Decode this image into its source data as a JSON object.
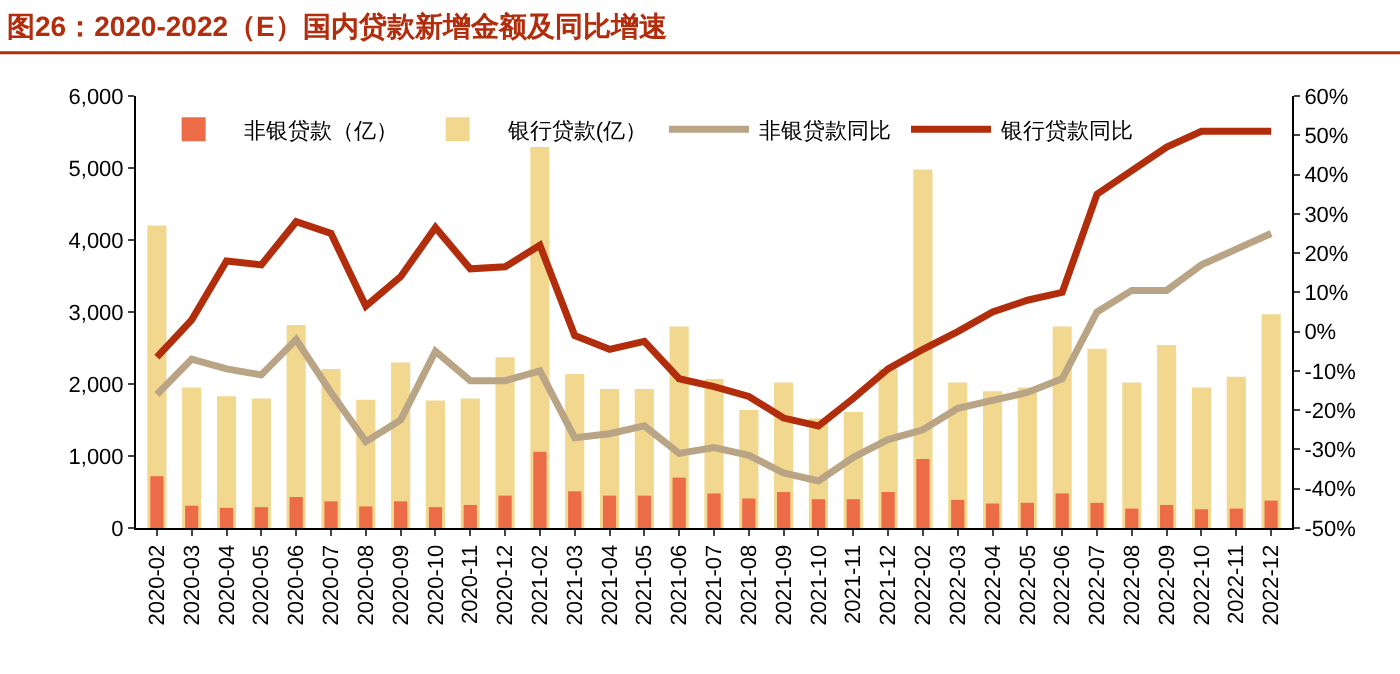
{
  "chart_data": {
    "type": "bar",
    "title": "图26：2020-2022（E）国内贷款新增金额及同比增速",
    "categories": [
      "2020-02",
      "2020-03",
      "2020-04",
      "2020-05",
      "2020-06",
      "2020-07",
      "2020-08",
      "2020-09",
      "2020-10",
      "2020-11",
      "2020-12",
      "2021-02",
      "2021-03",
      "2021-04",
      "2021-05",
      "2021-06",
      "2021-07",
      "2021-08",
      "2021-09",
      "2021-10",
      "2021-11",
      "2021-12",
      "2022-02",
      "2022-03",
      "2022-04",
      "2022-05",
      "2022-06",
      "2022-07",
      "2022-08",
      "2022-09",
      "2022-10",
      "2022-11",
      "2022-12"
    ],
    "series": [
      {
        "name": "非银贷款（亿）",
        "color": "#ec6c48",
        "values": [
          720,
          310,
          280,
          290,
          430,
          370,
          300,
          370,
          290,
          320,
          450,
          1060,
          510,
          450,
          450,
          700,
          480,
          410,
          500,
          400,
          400,
          500,
          960,
          390,
          340,
          350,
          480,
          350,
          270,
          320,
          260,
          270,
          380
        ]
      },
      {
        "name": "银行贷款(亿）",
        "color": "#f2d88f",
        "values": [
          4200,
          1950,
          1830,
          1800,
          2820,
          2210,
          1780,
          2300,
          1770,
          1800,
          2370,
          5290,
          2140,
          1930,
          1930,
          2800,
          2070,
          1640,
          2020,
          1520,
          1610,
          2210,
          4980,
          2020,
          1900,
          1950,
          2800,
          2490,
          2020,
          2540,
          1950,
          2100,
          2970
        ]
      },
      {
        "name": "非银贷款同比",
        "type": "line",
        "axis": "y2",
        "color": "#b9a585",
        "values": [
          -16,
          -7,
          -9.5,
          -11,
          -2,
          -15.5,
          -28,
          -22.5,
          -5,
          -12.5,
          -12.5,
          -10,
          -27,
          -26,
          -24,
          -31,
          -29.5,
          -31.5,
          -36,
          -38,
          -32,
          -27.5,
          -25,
          -19.5,
          -17.5,
          -15.5,
          -12,
          5,
          10.5,
          10.5,
          17,
          21,
          25
        ]
      },
      {
        "name": "银行贷款同比",
        "type": "line",
        "axis": "y2",
        "color": "#b22d0c",
        "values": [
          -6.5,
          3,
          18,
          17,
          28,
          25,
          6.5,
          14,
          26.5,
          16,
          16.5,
          22,
          -1,
          -4.5,
          -2.5,
          -12,
          -14,
          -16.5,
          -22,
          -24,
          -17,
          -9.5,
          -4.5,
          0,
          5,
          8,
          10,
          35,
          41,
          47,
          51,
          51,
          51
        ]
      }
    ],
    "ylim": [
      0,
      6000
    ],
    "yticks": [
      {
        "value": 0,
        "label": "0"
      },
      {
        "value": 1000,
        "label": "1,000"
      },
      {
        "value": 2000,
        "label": "2,000"
      },
      {
        "value": 3000,
        "label": "3,000"
      },
      {
        "value": 4000,
        "label": "4,000"
      },
      {
        "value": 5000,
        "label": "5,000"
      },
      {
        "value": 6000,
        "label": "6,000"
      }
    ],
    "y2lim": [
      -50,
      60
    ],
    "y2ticks": [
      {
        "value": -50,
        "label": "-50%"
      },
      {
        "value": -40,
        "label": "-40%"
      },
      {
        "value": -30,
        "label": "-30%"
      },
      {
        "value": -20,
        "label": "-20%"
      },
      {
        "value": -10,
        "label": "-10%"
      },
      {
        "value": 0,
        "label": "0%"
      },
      {
        "value": 10,
        "label": "10%"
      },
      {
        "value": 20,
        "label": "20%"
      },
      {
        "value": 30,
        "label": "30%"
      },
      {
        "value": 40,
        "label": "40%"
      },
      {
        "value": 50,
        "label": "50%"
      },
      {
        "value": 60,
        "label": "60%"
      }
    ],
    "legend": "top",
    "marker": "none",
    "line_style": "solid"
  }
}
